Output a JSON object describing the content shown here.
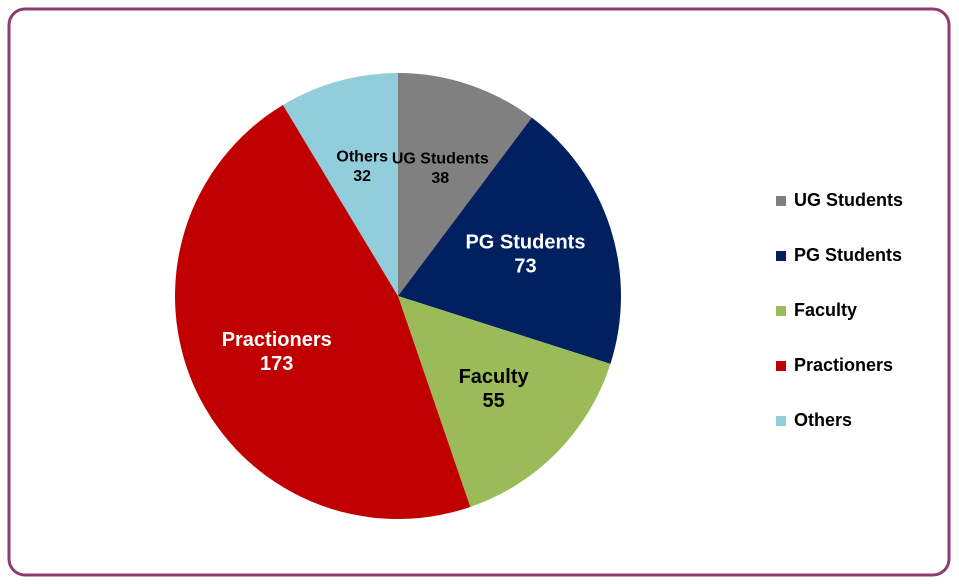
{
  "chart_data": {
    "type": "pie",
    "categories": [
      "UG Students",
      "PG Students",
      "Faculty",
      "Practioners",
      "Others"
    ],
    "values": [
      38,
      73,
      55,
      173,
      32
    ],
    "colors": [
      "#808080",
      "#002060",
      "#9bbb59",
      "#c00000",
      "#92cddc"
    ],
    "legend": "right"
  }
}
